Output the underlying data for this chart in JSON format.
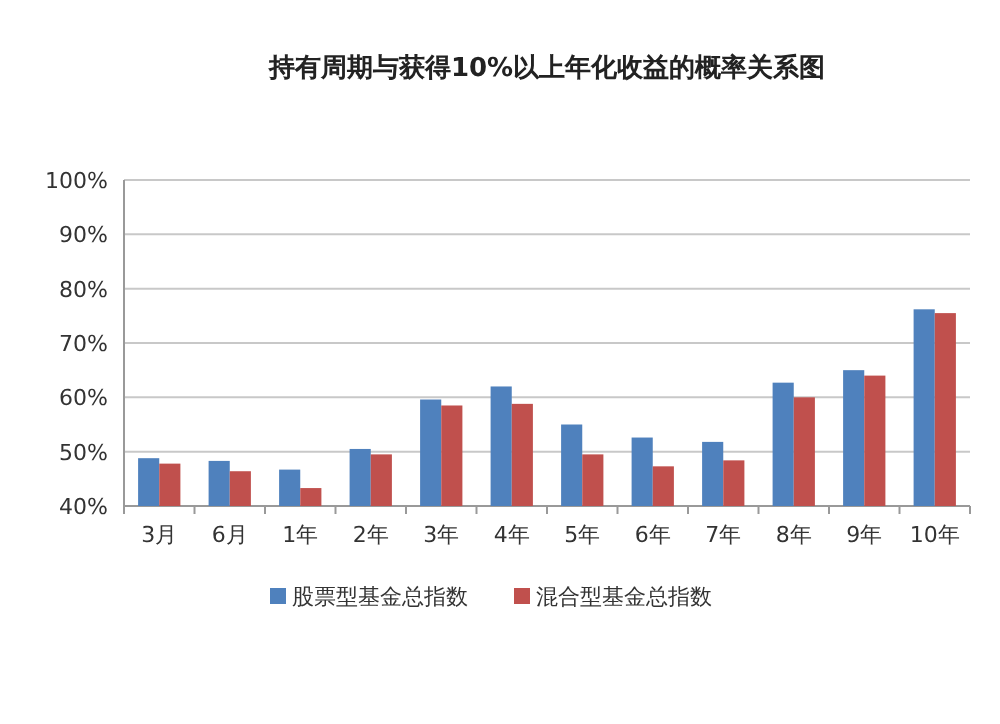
{
  "chart_data": {
    "type": "bar",
    "title": "持有周期与获得10%以上年化收益的概率关系图",
    "categories": [
      "3月",
      "6月",
      "1年",
      "2年",
      "3年",
      "4年",
      "5年",
      "6年",
      "7年",
      "8年",
      "9年",
      "10年"
    ],
    "series": [
      {
        "name": "股票型基金总指数",
        "color": "#4f81bd",
        "values": [
          48.8,
          48.3,
          46.7,
          50.5,
          59.6,
          62,
          55,
          52.6,
          51.8,
          62.7,
          65,
          76.2
        ]
      },
      {
        "name": "混合型基金总指数",
        "color": "#c0504d",
        "values": [
          47.8,
          46.4,
          43.3,
          49.5,
          58.5,
          58.8,
          49.5,
          47.3,
          48.4,
          60,
          64,
          75.5
        ]
      }
    ],
    "ylim": [
      40,
      100
    ],
    "yticks": [
      {
        "value": 40,
        "label": "40%"
      },
      {
        "value": 50,
        "label": "50%"
      },
      {
        "value": 60,
        "label": "60%"
      },
      {
        "value": 70,
        "label": "70%"
      },
      {
        "value": 80,
        "label": "80%"
      },
      {
        "value": 90,
        "label": "90%"
      },
      {
        "value": 100,
        "label": "100%"
      }
    ],
    "grid": "y",
    "legend": "bottom"
  }
}
